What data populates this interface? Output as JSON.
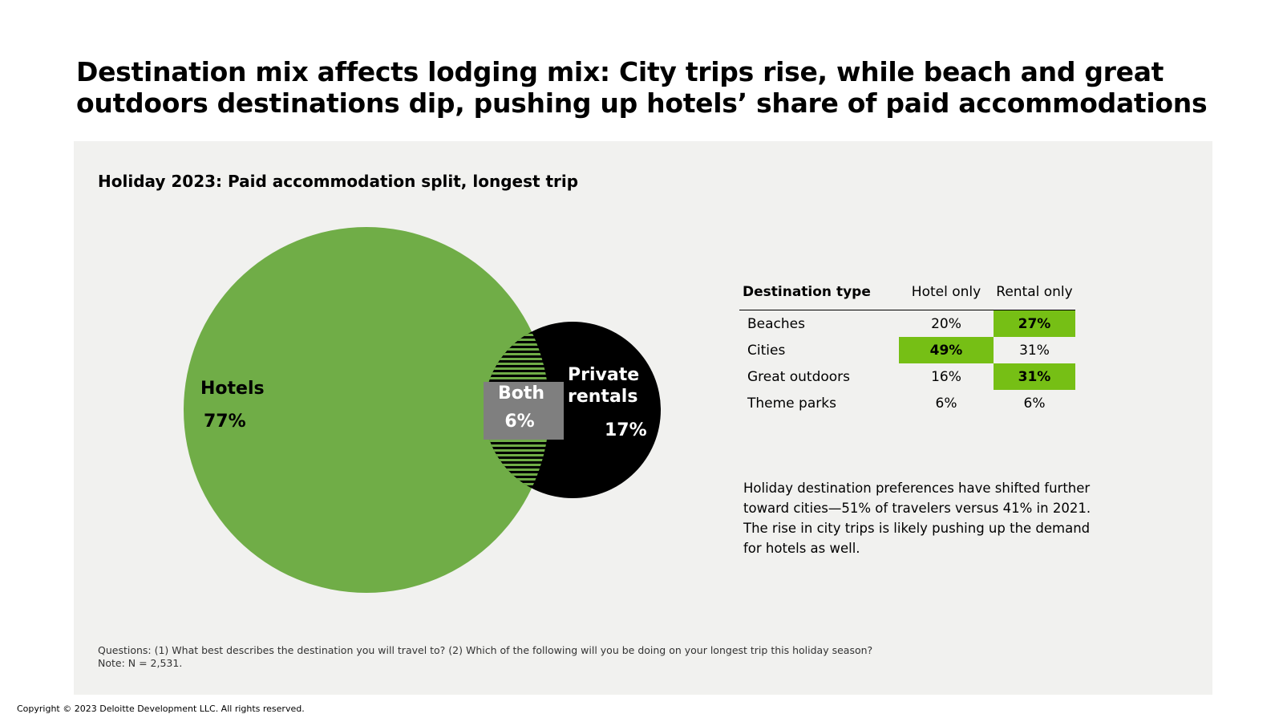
{
  "headline": "Destination mix affects lodging mix: City trips rise, while beach and great outdoors destinations dip, pushing up hotels’ share of paid accommodations",
  "colors": {
    "hotels": "#70ad47",
    "rentals": "#000000",
    "both": "#7f7f7f",
    "highlight": "#76bf15",
    "panel": "#f1f1ef"
  },
  "chart_data": {
    "type": "venn",
    "title": "Holiday 2023: Paid accommodation split, longest trip",
    "sets": [
      {
        "name": "Hotels",
        "value": 77,
        "value_label": "77%"
      },
      {
        "name": "Private rentals",
        "name_lines": [
          "Private",
          "rentals"
        ],
        "value": 17,
        "value_label": "17%"
      },
      {
        "name": "Both",
        "value": 6,
        "value_label": "6%"
      }
    ]
  },
  "table": {
    "headers": [
      "Destination type",
      "Hotel only",
      "Rental only"
    ],
    "rows": [
      {
        "type": "Beaches",
        "hotel": "20%",
        "rental": "27%",
        "highlight": "rental"
      },
      {
        "type": "Cities",
        "hotel": "49%",
        "rental": "31%",
        "highlight": "hotel"
      },
      {
        "type": "Great outdoors",
        "hotel": "16%",
        "rental": "31%",
        "highlight": "rental"
      },
      {
        "type": "Theme parks",
        "hotel": "6%",
        "rental": "6%",
        "highlight": ""
      }
    ]
  },
  "note": "Holiday destination preferences have shifted further toward cities—51% of travelers versus 41% in 2021. The rise in city trips is likely pushing up the demand for hotels as well.",
  "footnote": {
    "questions": "Questions: (1) What best describes the destination you will travel to? (2) Which of the following will you be doing on your longest trip this holiday season?",
    "n": "Note: N = 2,531."
  },
  "copyright": "Copyright © 2023 Deloitte Development LLC. All rights reserved."
}
